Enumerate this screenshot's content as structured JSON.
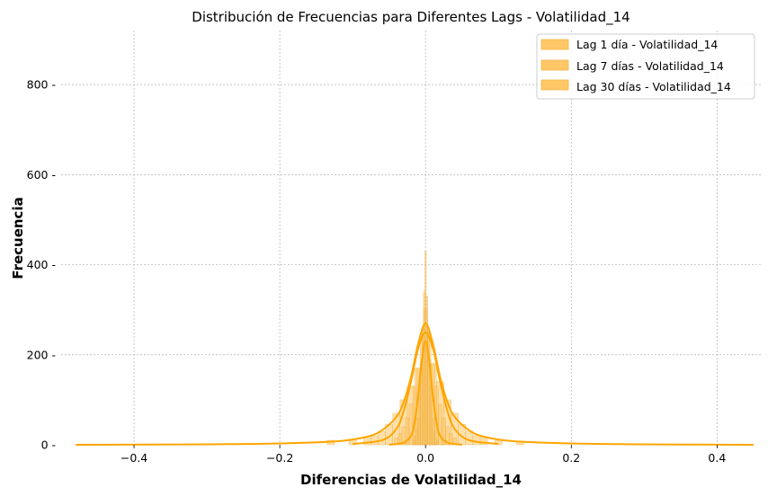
{
  "chart_data": {
    "type": "histogram",
    "title": "Distribución de Frecuencias para Diferentes Lags - Volatilidad_14",
    "xlabel": "Diferencias de Volatilidad_14",
    "ylabel": "Frecuencia",
    "xlim": [
      -0.5,
      0.46
    ],
    "ylim": [
      0,
      920
    ],
    "xticks": [
      -0.4,
      -0.2,
      0.0,
      0.2,
      0.4
    ],
    "xtick_labels": [
      "−0.4",
      "−0.2",
      "0.0",
      "0.2",
      "0.4"
    ],
    "yticks": [
      0,
      200,
      400,
      600,
      800
    ],
    "ytick_labels": [
      "0",
      "200",
      "400",
      "600",
      "800"
    ],
    "grid": true,
    "legend_position": "top-right",
    "series_color": "#FFA500",
    "series": [
      {
        "name": "Lag 1 día - Volatilidad_14",
        "hist": {
          "x": [
            -0.016,
            -0.014,
            -0.012,
            -0.01,
            -0.008,
            -0.006,
            -0.004,
            -0.002,
            0.0,
            0.002,
            0.004,
            0.006,
            0.008,
            0.01,
            0.012,
            0.014,
            0.016
          ],
          "counts": [
            10,
            20,
            35,
            60,
            110,
            180,
            260,
            340,
            430,
            330,
            250,
            170,
            110,
            60,
            30,
            15,
            8
          ]
        },
        "kde": {
          "x": [
            -0.05,
            -0.03,
            -0.02,
            -0.015,
            -0.01,
            -0.005,
            0.0,
            0.005,
            0.01,
            0.015,
            0.02,
            0.03,
            0.05
          ],
          "y": [
            0,
            5,
            20,
            50,
            110,
            190,
            230,
            190,
            110,
            50,
            20,
            5,
            0
          ]
        }
      },
      {
        "name": "Lag 7 días - Volatilidad_14",
        "hist": {
          "x": [
            -0.04,
            -0.035,
            -0.03,
            -0.025,
            -0.02,
            -0.015,
            -0.01,
            -0.005,
            0.0,
            0.005,
            0.01,
            0.015,
            0.02,
            0.025,
            0.03,
            0.035,
            0.04
          ],
          "counts": [
            15,
            25,
            40,
            60,
            90,
            130,
            170,
            230,
            300,
            240,
            180,
            130,
            90,
            60,
            40,
            25,
            15
          ]
        },
        "kde": {
          "x": [
            -0.1,
            -0.06,
            -0.04,
            -0.03,
            -0.02,
            -0.01,
            0.0,
            0.01,
            0.02,
            0.03,
            0.04,
            0.06,
            0.1
          ],
          "y": [
            2,
            10,
            35,
            75,
            140,
            215,
            250,
            215,
            140,
            75,
            35,
            10,
            2
          ]
        }
      },
      {
        "name": "Lag 30 días - Volatilidad_14",
        "hist": {
          "x": [
            -0.08,
            -0.07,
            -0.06,
            -0.05,
            -0.04,
            -0.03,
            -0.02,
            -0.01,
            0.0,
            0.01,
            0.02,
            0.03,
            0.04,
            0.05,
            0.06,
            0.07,
            0.08,
            -0.13,
            0.13,
            -0.1,
            0.1
          ],
          "counts": [
            15,
            20,
            30,
            45,
            70,
            100,
            130,
            170,
            260,
            180,
            140,
            100,
            70,
            45,
            30,
            20,
            15,
            10,
            8,
            12,
            10
          ]
        },
        "kde": {
          "x": [
            -0.48,
            -0.3,
            -0.2,
            -0.12,
            -0.08,
            -0.06,
            -0.04,
            -0.03,
            -0.02,
            -0.01,
            0.0,
            0.01,
            0.02,
            0.03,
            0.04,
            0.06,
            0.08,
            0.12,
            0.2,
            0.3,
            0.45
          ],
          "y": [
            0,
            1,
            3,
            8,
            18,
            32,
            62,
            95,
            150,
            225,
            270,
            225,
            150,
            95,
            62,
            32,
            18,
            8,
            3,
            1,
            0
          ]
        }
      }
    ]
  }
}
